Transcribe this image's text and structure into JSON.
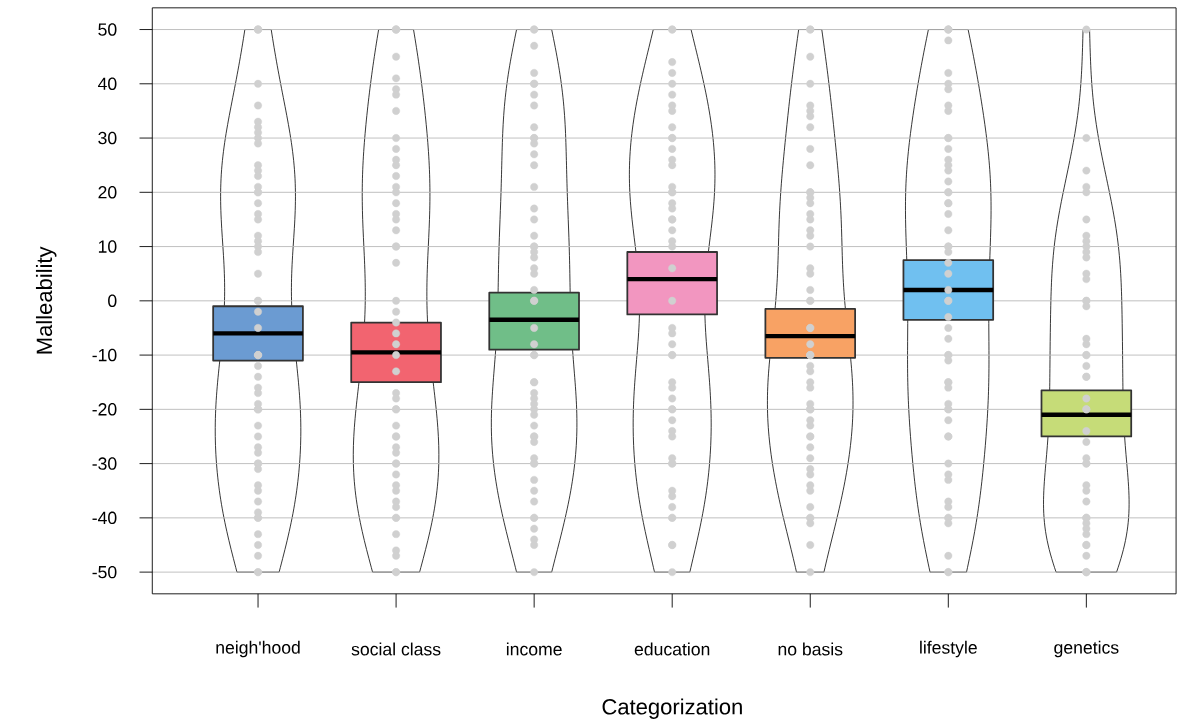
{
  "chart_data": {
    "type": "box",
    "xlabel": "Categorization",
    "ylabel": "Malleability",
    "categories": [
      "neigh'hood",
      "social class",
      "income",
      "education",
      "no basis",
      "lifestyle",
      "genetics"
    ],
    "ylim": [
      -54,
      54
    ],
    "yticks": [
      -50,
      -40,
      -30,
      -20,
      -10,
      0,
      10,
      20,
      30,
      40,
      50
    ],
    "grid": "y",
    "series": [
      {
        "type": "box",
        "colors": [
          "#6b9bd2",
          "#f26470",
          "#70be88",
          "#f296c0",
          "#f8a264",
          "#70c0f0",
          "#c6dc78"
        ],
        "boxes": [
          {
            "low": -11,
            "q1": -11,
            "median": -6,
            "q3": -1,
            "high": -1
          },
          {
            "low": -15,
            "q1": -15,
            "median": -9.5,
            "q3": -4,
            "high": -4
          },
          {
            "low": -9,
            "q1": -9,
            "median": -3.5,
            "q3": 1.5,
            "high": 1.5
          },
          {
            "low": -2.5,
            "q1": -2.5,
            "median": 4,
            "q3": 9,
            "high": 9
          },
          {
            "low": -10.5,
            "q1": -10.5,
            "median": -6.5,
            "q3": -1.5,
            "high": -1.5
          },
          {
            "low": -3.5,
            "q1": -3.5,
            "median": 2,
            "q3": 7.5,
            "high": 7.5
          },
          {
            "low": -25,
            "q1": -25,
            "median": -21,
            "q3": -16.5,
            "high": -16.5
          }
        ]
      },
      {
        "type": "scatter",
        "color": "#d0d0d0",
        "marker": "circle",
        "x": [
          "neigh'hood",
          "neigh'hood",
          "neigh'hood",
          "neigh'hood",
          "neigh'hood",
          "neigh'hood",
          "neigh'hood",
          "neigh'hood",
          "neigh'hood",
          "neigh'hood",
          "neigh'hood",
          "neigh'hood",
          "neigh'hood",
          "neigh'hood",
          "neigh'hood",
          "neigh'hood",
          "neigh'hood",
          "neigh'hood",
          "neigh'hood",
          "neigh'hood",
          "neigh'hood",
          "neigh'hood",
          "neigh'hood",
          "neigh'hood",
          "neigh'hood",
          "neigh'hood",
          "neigh'hood",
          "neigh'hood",
          "neigh'hood",
          "neigh'hood",
          "neigh'hood",
          "neigh'hood",
          "neigh'hood",
          "neigh'hood",
          "neigh'hood",
          "neigh'hood",
          "neigh'hood",
          "neigh'hood",
          "neigh'hood",
          "neigh'hood",
          "neigh'hood",
          "neigh'hood",
          "neigh'hood",
          "neigh'hood",
          "neigh'hood",
          "neigh'hood",
          "neigh'hood",
          "neigh'hood",
          "neigh'hood",
          "neigh'hood",
          "neigh'hood",
          "neigh'hood",
          "neigh'hood",
          "neigh'hood",
          "neigh'hood",
          "neigh'hood",
          "neigh'hood",
          "social class",
          "social class",
          "social class",
          "social class",
          "social class",
          "social class",
          "social class",
          "social class",
          "social class",
          "social class",
          "social class",
          "social class",
          "social class",
          "social class",
          "social class",
          "social class",
          "social class",
          "social class",
          "social class",
          "social class",
          "social class",
          "social class",
          "social class",
          "social class",
          "social class",
          "social class",
          "social class",
          "social class",
          "social class",
          "social class",
          "social class",
          "social class",
          "social class",
          "social class",
          "social class",
          "social class",
          "social class",
          "social class",
          "social class",
          "social class",
          "social class",
          "social class",
          "social class",
          "social class",
          "social class",
          "social class",
          "social class",
          "social class",
          "social class",
          "social class",
          "social class",
          "social class",
          "income",
          "income",
          "income",
          "income",
          "income",
          "income",
          "income",
          "income",
          "income",
          "income",
          "income",
          "income",
          "income",
          "income",
          "income",
          "income",
          "income",
          "income",
          "income",
          "income",
          "income",
          "income",
          "income",
          "income",
          "income",
          "income",
          "income",
          "income",
          "income",
          "income",
          "income",
          "income",
          "income",
          "income",
          "income",
          "income",
          "income",
          "income",
          "income",
          "income",
          "income",
          "income",
          "income",
          "income",
          "income",
          "income",
          "income",
          "income",
          "income",
          "income",
          "income",
          "income",
          "income",
          "income",
          "education",
          "education",
          "education",
          "education",
          "education",
          "education",
          "education",
          "education",
          "education",
          "education",
          "education",
          "education",
          "education",
          "education",
          "education",
          "education",
          "education",
          "education",
          "education",
          "education",
          "education",
          "education",
          "education",
          "education",
          "education",
          "education",
          "education",
          "education",
          "education",
          "education",
          "education",
          "education",
          "education",
          "education",
          "education",
          "education",
          "education",
          "education",
          "education",
          "education",
          "education",
          "education",
          "education",
          "education",
          "education",
          "education",
          "education",
          "education",
          "education",
          "education",
          "no basis",
          "no basis",
          "no basis",
          "no basis",
          "no basis",
          "no basis",
          "no basis",
          "no basis",
          "no basis",
          "no basis",
          "no basis",
          "no basis",
          "no basis",
          "no basis",
          "no basis",
          "no basis",
          "no basis",
          "no basis",
          "no basis",
          "no basis",
          "no basis",
          "no basis",
          "no basis",
          "no basis",
          "no basis",
          "no basis",
          "no basis",
          "no basis",
          "no basis",
          "no basis",
          "no basis",
          "no basis",
          "no basis",
          "no basis",
          "no basis",
          "no basis",
          "no basis",
          "no basis",
          "no basis",
          "no basis",
          "no basis",
          "no basis",
          "no basis",
          "no basis",
          "no basis",
          "no basis",
          "no basis",
          "no basis",
          "no basis",
          "no basis",
          "no basis",
          "no basis",
          "no basis",
          "no basis",
          "lifestyle",
          "lifestyle",
          "lifestyle",
          "lifestyle",
          "lifestyle",
          "lifestyle",
          "lifestyle",
          "lifestyle",
          "lifestyle",
          "lifestyle",
          "lifestyle",
          "lifestyle",
          "lifestyle",
          "lifestyle",
          "lifestyle",
          "lifestyle",
          "lifestyle",
          "lifestyle",
          "lifestyle",
          "lifestyle",
          "lifestyle",
          "lifestyle",
          "lifestyle",
          "lifestyle",
          "lifestyle",
          "lifestyle",
          "lifestyle",
          "lifestyle",
          "lifestyle",
          "lifestyle",
          "lifestyle",
          "lifestyle",
          "lifestyle",
          "lifestyle",
          "lifestyle",
          "lifestyle",
          "lifestyle",
          "lifestyle",
          "lifestyle",
          "lifestyle",
          "lifestyle",
          "lifestyle",
          "lifestyle",
          "lifestyle",
          "lifestyle",
          "lifestyle",
          "lifestyle",
          "lifestyle",
          "lifestyle",
          "lifestyle",
          "lifestyle",
          "lifestyle",
          "lifestyle",
          "lifestyle",
          "lifestyle",
          "lifestyle",
          "genetics",
          "genetics",
          "genetics",
          "genetics",
          "genetics",
          "genetics",
          "genetics",
          "genetics",
          "genetics",
          "genetics",
          "genetics",
          "genetics",
          "genetics",
          "genetics",
          "genetics",
          "genetics",
          "genetics",
          "genetics",
          "genetics",
          "genetics",
          "genetics",
          "genetics",
          "genetics",
          "genetics",
          "genetics",
          "genetics",
          "genetics",
          "genetics",
          "genetics",
          "genetics",
          "genetics",
          "genetics",
          "genetics",
          "genetics",
          "genetics",
          "genetics",
          "genetics",
          "genetics",
          "genetics",
          "genetics",
          "genetics",
          "genetics",
          "genetics",
          "genetics",
          "genetics",
          "genetics"
        ],
        "values": [
          50,
          50,
          50,
          40,
          36,
          33,
          32,
          31,
          30,
          29,
          25,
          24,
          23,
          21,
          20,
          20,
          18,
          16,
          15,
          12,
          11,
          10,
          9,
          5,
          0,
          0,
          -2,
          -5,
          -10,
          -10,
          -10,
          -12,
          -14,
          -16,
          -17,
          -19,
          -20,
          -20,
          -20,
          -23,
          -25,
          -27,
          -28,
          -30,
          -30,
          -31,
          -34,
          -35,
          -37,
          -39,
          -40,
          -40,
          -43,
          -45,
          -47,
          -50,
          -50,
          50,
          50,
          50,
          45,
          41,
          39,
          38,
          35,
          30,
          28,
          26,
          25,
          23,
          21,
          20,
          18,
          16,
          15,
          13,
          10,
          10,
          7,
          0,
          -2,
          -4,
          -6,
          -8,
          -10,
          -13,
          -17,
          -18,
          -20,
          -20,
          -23,
          -25,
          -25,
          -27,
          -28,
          -30,
          -30,
          -32,
          -34,
          -35,
          -37,
          -38,
          -40,
          -40,
          -43,
          -46,
          -47,
          -50,
          -50,
          50,
          50,
          47,
          42,
          40,
          40,
          38,
          36,
          32,
          30,
          30,
          29,
          27,
          25,
          21,
          17,
          15,
          12,
          10,
          10,
          9,
          8,
          6,
          5,
          2,
          0,
          0,
          -5,
          -8,
          -10,
          -10,
          -15,
          -15,
          -17,
          -18,
          -19,
          -20,
          -21,
          -23,
          -25,
          -25,
          -26,
          -29,
          -30,
          -30,
          -33,
          -35,
          -37,
          -40,
          -40,
          -42,
          -44,
          -45,
          -50,
          50,
          50,
          44,
          42,
          40,
          38,
          36,
          35,
          32,
          30,
          30,
          28,
          26,
          25,
          21,
          20,
          20,
          18,
          17,
          15,
          15,
          13,
          11,
          10,
          6,
          0,
          -5,
          -6,
          -8,
          -10,
          -10,
          -15,
          -16,
          -18,
          -20,
          -20,
          -22,
          -24,
          -25,
          -29,
          -30,
          -30,
          -35,
          -36,
          -38,
          -40,
          -40,
          -45,
          -45,
          -50,
          50,
          50,
          45,
          40,
          36,
          35,
          34,
          32,
          28,
          25,
          20,
          20,
          19,
          18,
          16,
          15,
          13,
          12,
          10,
          6,
          5,
          2,
          0,
          0,
          -5,
          -5,
          -8,
          -10,
          -10,
          -10,
          -12,
          -13,
          -15,
          -16,
          -19,
          -20,
          -20,
          -20,
          -22,
          -23,
          -25,
          -25,
          -27,
          -29,
          -31,
          -32,
          -34,
          -35,
          -38,
          -40,
          -40,
          -41,
          -45,
          -50,
          50,
          50,
          50,
          48,
          42,
          40,
          39,
          36,
          35,
          30,
          30,
          28,
          26,
          25,
          24,
          22,
          20,
          20,
          18,
          18,
          16,
          13,
          10,
          10,
          9,
          7,
          5,
          2,
          0,
          0,
          -3,
          -5,
          -7,
          -10,
          -10,
          -11,
          -15,
          -15,
          -16,
          -19,
          -20,
          -20,
          -22,
          -25,
          -25,
          -30,
          -32,
          -33,
          -37,
          -38,
          -40,
          -40,
          -41,
          -47,
          -50,
          -50,
          50,
          30,
          24,
          21,
          20,
          15,
          12,
          11,
          10,
          9,
          8,
          5,
          4,
          0,
          0,
          -1,
          -7,
          -8,
          -10,
          -10,
          -12,
          -14,
          -14,
          -18,
          -20,
          -20,
          -24,
          -26,
          -29,
          -30,
          -30,
          -34,
          -35,
          -37,
          -40,
          -40,
          -40,
          -41,
          -42,
          -43,
          -45,
          -45,
          -47,
          -50,
          -50,
          -50
        ]
      }
    ]
  }
}
